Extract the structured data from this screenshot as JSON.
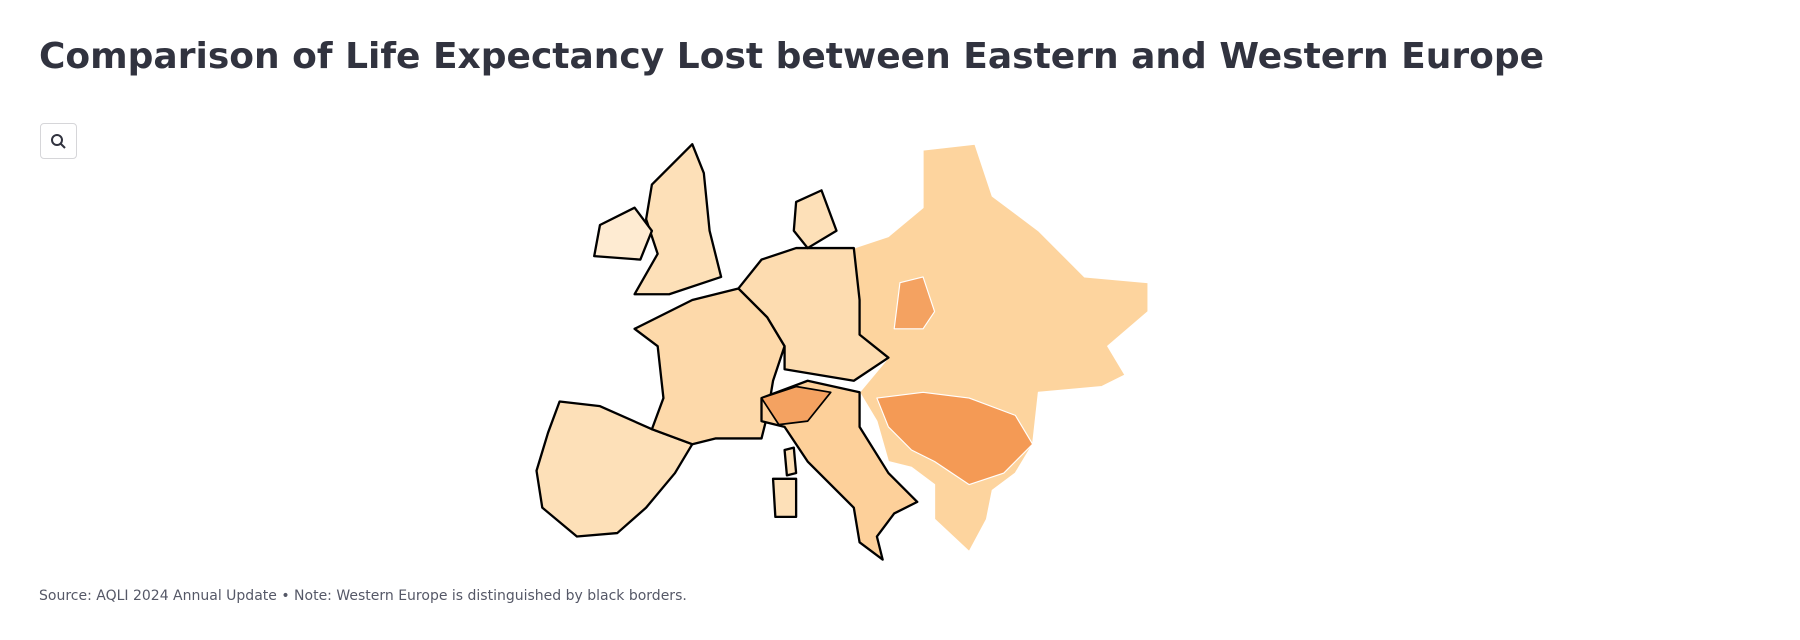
{
  "header": {
    "title": "Comparison of Life Expectancy Lost between Eastern and Western Europe"
  },
  "footer": {
    "source": "Source: AQLI 2024 Annual Update • Note: Western Europe is distinguished by black borders."
  }
}
